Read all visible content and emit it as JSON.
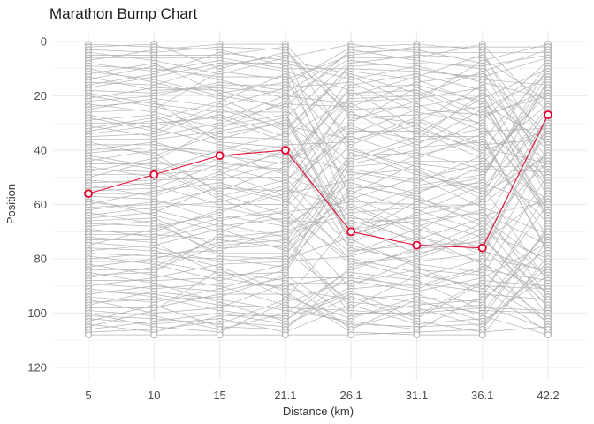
{
  "chart_data": {
    "type": "line",
    "title": "Marathon Bump Chart",
    "xlabel": "Distance (km)",
    "ylabel": "Position",
    "categories": [
      "5",
      "10",
      "15",
      "21.1",
      "26.1",
      "31.1",
      "36.1",
      "42.2"
    ],
    "y_ticks": [
      0,
      20,
      40,
      60,
      80,
      100,
      120
    ],
    "ylim": [
      0,
      120
    ],
    "y_reversed": true,
    "grid": true,
    "positions_per_checkpoint": [
      1,
      108
    ],
    "colors": {
      "background_lines": "#b3b3b3",
      "background_points": "#b3b3b3",
      "highlight": "#e8002d",
      "grid": "#ebebeb"
    },
    "highlight_series": {
      "values": [
        56,
        49,
        42,
        40,
        70,
        75,
        76,
        27
      ]
    }
  }
}
